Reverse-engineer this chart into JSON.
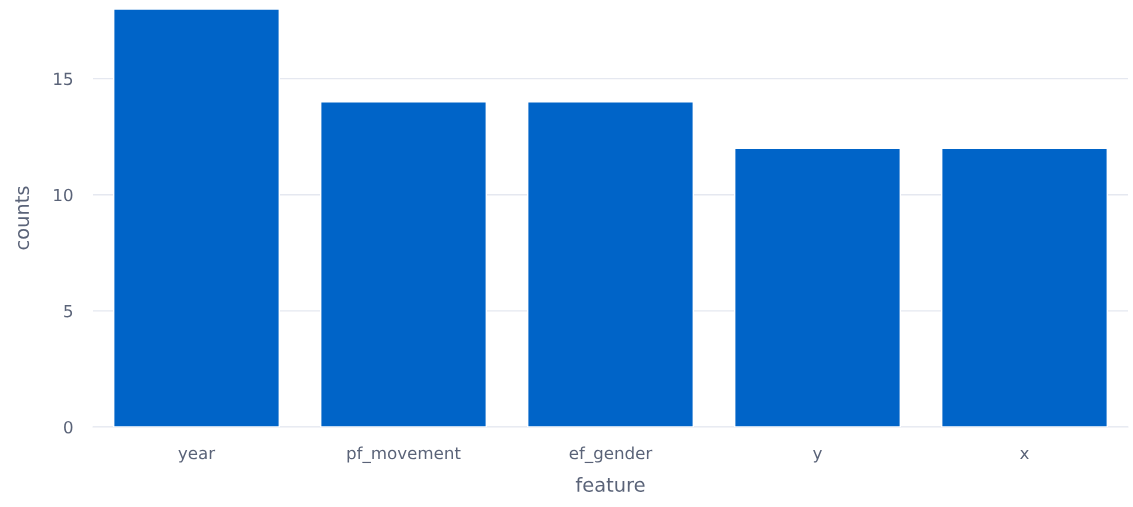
{
  "chart_data": {
    "type": "bar",
    "categories": [
      "year",
      "pf_movement",
      "ef_gender",
      "y",
      "x"
    ],
    "values": [
      18,
      14,
      14,
      12,
      12
    ],
    "color": "#0064c8",
    "xlabel": "feature",
    "ylabel": "counts",
    "ylim": [
      0,
      18
    ],
    "yticks": [
      0,
      5,
      10,
      15
    ],
    "grid": "y",
    "legend": false
  }
}
